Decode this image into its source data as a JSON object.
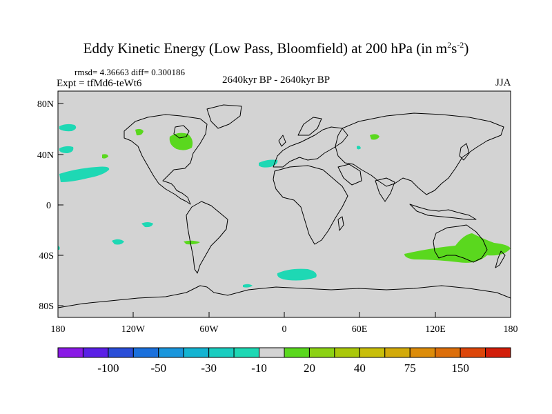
{
  "header": {
    "title_main": "Eddy Kinetic Energy (Low Pass, Bloomfield) at 200 hPa (in m",
    "title_sup1": "2",
    "title_mid": "s",
    "title_sup2": "-2",
    "title_end": ")",
    "stats": "rmsd= 4.36663 diff= 0.300186",
    "experiment": "Expt = tfMd6-teWt6",
    "period": "2640kyr BP - 2640kyr BP",
    "season": "JJA"
  },
  "map": {
    "ocean_color": "#d3d3d3",
    "lat_labels": [
      "80N",
      "40N",
      "0",
      "40S",
      "80S"
    ],
    "lon_labels": [
      "180",
      "120W",
      "60W",
      "0",
      "60E",
      "120E",
      "180"
    ],
    "anomaly_regions": [
      {
        "name": "north-pacific-cyan-1",
        "sign": "negative"
      },
      {
        "name": "north-pacific-cyan-2",
        "sign": "negative"
      },
      {
        "name": "central-pacific-cyan-band",
        "sign": "negative"
      },
      {
        "name": "great-lakes-green",
        "sign": "positive"
      },
      {
        "name": "canada-green",
        "sign": "positive"
      },
      {
        "name": "iberia-atlantic-cyan",
        "sign": "negative"
      },
      {
        "name": "siberia-green",
        "sign": "positive"
      },
      {
        "name": "south-atlantic-cyan",
        "sign": "negative"
      },
      {
        "name": "australia-green-band",
        "sign": "positive"
      }
    ]
  },
  "colorbar": {
    "colors": [
      "#8a1ae6",
      "#5a20e6",
      "#2a4ed8",
      "#1a70dc",
      "#1a96dc",
      "#14b4d2",
      "#1acdc0",
      "#1ed8b4",
      "#d3d3d3",
      "#5ad81e",
      "#8cd214",
      "#aac80a",
      "#c8be0a",
      "#d2aa0a",
      "#dc8c0a",
      "#dc6e0a",
      "#dc460a",
      "#d21e0a"
    ],
    "labels": [
      "-100",
      "-50",
      "-30",
      "-10",
      "20",
      "40",
      "75",
      "150"
    ]
  }
}
